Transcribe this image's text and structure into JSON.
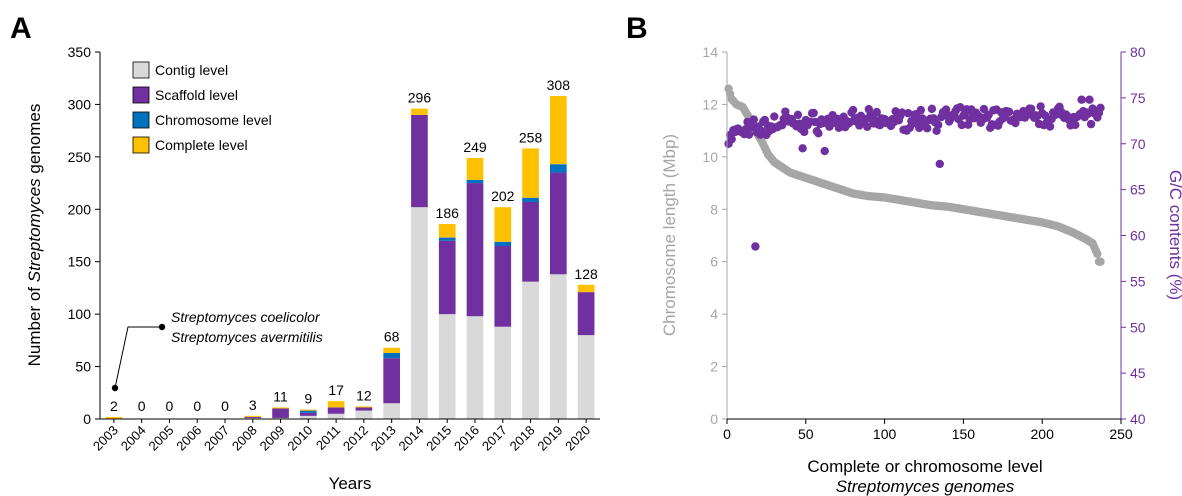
{
  "chart_data": [
    {
      "panel_label": "A",
      "type": "bar",
      "stacked": true,
      "xlabel": "Years",
      "ylabel_parts": [
        "Number of ",
        "Streptomyces",
        " genomes"
      ],
      "ylim": [
        0,
        350
      ],
      "yticks": [
        0,
        50,
        100,
        150,
        200,
        250,
        300,
        350
      ],
      "categories": [
        "2003",
        "2004",
        "2005",
        "2006",
        "2007",
        "2008",
        "2009",
        "2010",
        "2011",
        "2012",
        "2013",
        "2014",
        "2015",
        "2016",
        "2017",
        "2018",
        "2019",
        "2020"
      ],
      "totals": [
        2,
        0,
        0,
        0,
        0,
        3,
        11,
        9,
        17,
        12,
        68,
        296,
        186,
        249,
        202,
        258,
        308,
        128
      ],
      "series": [
        {
          "name": "Contig level",
          "color": "#d9d9d9",
          "values": [
            0,
            0,
            0,
            0,
            0,
            1,
            1,
            3,
            5,
            8,
            15,
            202,
            100,
            98,
            88,
            131,
            138,
            80
          ]
        },
        {
          "name": "Scaffold level",
          "color": "#7030a0",
          "values": [
            0,
            0,
            0,
            0,
            0,
            1,
            9,
            3,
            6,
            3,
            43,
            88,
            70,
            127,
            77,
            76,
            97,
            41
          ]
        },
        {
          "name": "Chromosome level",
          "color": "#0070c0",
          "values": [
            0,
            0,
            0,
            0,
            0,
            0,
            0,
            2,
            0,
            0,
            5,
            0,
            3,
            3,
            4,
            4,
            8,
            0
          ]
        },
        {
          "name": "Complete level",
          "color": "#ffc000",
          "values": [
            2,
            0,
            0,
            0,
            0,
            1,
            1,
            1,
            6,
            1,
            5,
            6,
            13,
            21,
            33,
            47,
            65,
            7
          ]
        }
      ],
      "legend_position": "top-left",
      "annotation": {
        "lines": [
          "Streptomyces coelicolor",
          "Streptomyces avermitilis"
        ],
        "points_to": "2003"
      }
    },
    {
      "panel_label": "B",
      "type": "scatter",
      "xlabel_line1": "Complete or chromosome level",
      "xlabel_line2": "Streptomyces genomes",
      "ylabel_left": "Chromosome length (Mbp)",
      "ylabel_right": "G/C contents (%)",
      "xlim": [
        0,
        250
      ],
      "xticks": [
        0,
        50,
        100,
        150,
        200,
        250
      ],
      "ylim_left": [
        0,
        14
      ],
      "yticks_left": [
        0,
        2,
        4,
        6,
        8,
        10,
        12,
        14
      ],
      "ylim_right": [
        40,
        80
      ],
      "yticks_right": [
        40,
        45,
        50,
        55,
        60,
        65,
        70,
        75,
        80
      ],
      "colors": {
        "length": "#a6a6a6",
        "gc": "#7030a0"
      },
      "n_genomes": 237,
      "length_curve": [
        [
          1,
          12.6
        ],
        [
          3,
          12.2
        ],
        [
          6,
          12.0
        ],
        [
          10,
          11.9
        ],
        [
          14,
          11.5
        ],
        [
          18,
          11.0
        ],
        [
          22,
          10.6
        ],
        [
          26,
          10.1
        ],
        [
          30,
          9.8
        ],
        [
          35,
          9.6
        ],
        [
          40,
          9.4
        ],
        [
          50,
          9.2
        ],
        [
          60,
          9.0
        ],
        [
          70,
          8.8
        ],
        [
          80,
          8.6
        ],
        [
          90,
          8.5
        ],
        [
          100,
          8.45
        ],
        [
          110,
          8.35
        ],
        [
          120,
          8.25
        ],
        [
          130,
          8.15
        ],
        [
          140,
          8.1
        ],
        [
          150,
          8.0
        ],
        [
          160,
          7.9
        ],
        [
          170,
          7.8
        ],
        [
          180,
          7.7
        ],
        [
          190,
          7.6
        ],
        [
          200,
          7.5
        ],
        [
          210,
          7.35
        ],
        [
          220,
          7.1
        ],
        [
          228,
          6.85
        ],
        [
          232,
          6.7
        ],
        [
          235,
          6.3
        ],
        [
          236,
          6.0
        ]
      ],
      "gc_typical": [
        70.5,
        74.5
      ],
      "gc_outliers": [
        [
          1,
          70.0
        ],
        [
          18,
          58.8
        ],
        [
          48,
          69.5
        ],
        [
          62,
          69.2
        ],
        [
          135,
          67.8
        ],
        [
          10,
          71.2
        ],
        [
          37,
          73.5
        ],
        [
          130,
          73.8
        ],
        [
          225,
          74.8
        ],
        [
          230,
          74.8
        ]
      ]
    }
  ]
}
